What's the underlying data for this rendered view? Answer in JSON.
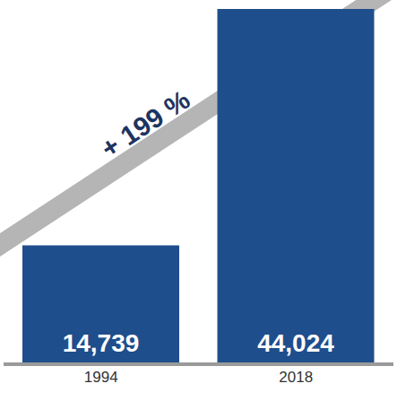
{
  "chart_data": {
    "type": "bar",
    "categories": [
      "1994",
      "2018"
    ],
    "values": [
      14739,
      44024
    ],
    "value_labels": [
      "14,739",
      "44,024"
    ],
    "data_labels": true,
    "color": "#1f4e8c",
    "ylim": [
      0,
      44024
    ],
    "tick_labels": "x",
    "annotation": "+ 199 %"
  }
}
